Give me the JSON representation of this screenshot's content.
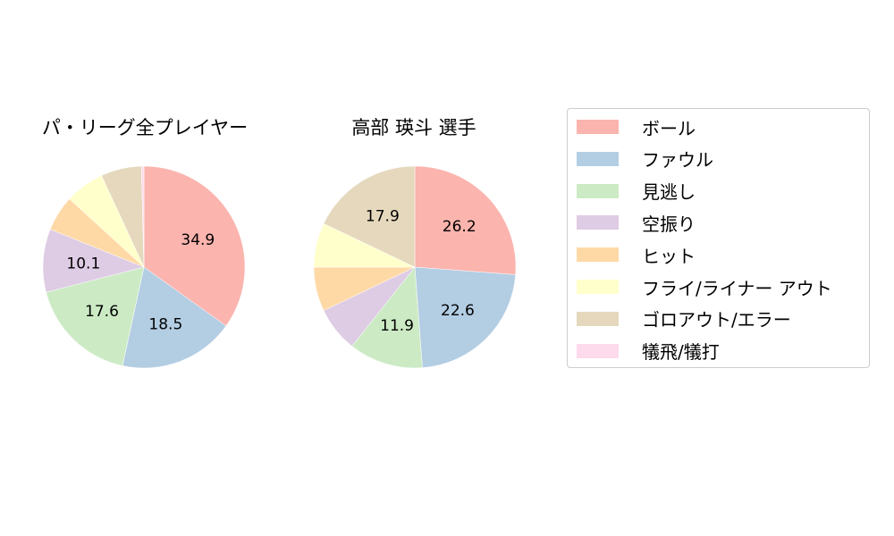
{
  "chart_data": [
    {
      "type": "pie",
      "title": "パ・リーグ全プレイヤー",
      "categories": [
        "ボール",
        "ファウル",
        "見逃し",
        "空振り",
        "ヒット",
        "フライ/ライナー アウト",
        "ゴロアウト/エラー",
        "犠飛/犠打"
      ],
      "values": [
        34.9,
        18.5,
        17.6,
        10.1,
        5.7,
        6.3,
        6.5,
        0.4
      ],
      "labels_shown": [
        "34.9",
        "18.5",
        "17.6",
        "10.1"
      ]
    },
    {
      "type": "pie",
      "title": "高部 瑛斗  選手",
      "categories": [
        "ボール",
        "ファウル",
        "見逃し",
        "空振り",
        "ヒット",
        "フライ/ライナー アウト",
        "ゴロアウト/エラー",
        "犠飛/犠打"
      ],
      "values": [
        26.2,
        22.6,
        11.9,
        7.2,
        7.1,
        7.1,
        17.9,
        0.0
      ],
      "labels_shown": [
        "26.2",
        "22.6",
        "11.9",
        "17.9"
      ]
    }
  ],
  "titles": {
    "left": "パ・リーグ全プレイヤー",
    "right": "高部 瑛斗  選手"
  },
  "legend": [
    {
      "label": "ボール",
      "color": "#fbb4ae"
    },
    {
      "label": "ファウル",
      "color": "#b3cde3"
    },
    {
      "label": "見逃し",
      "color": "#ccebc5"
    },
    {
      "label": "空振り",
      "color": "#decbe4"
    },
    {
      "label": "ヒット",
      "color": "#fed9a6"
    },
    {
      "label": "フライ/ライナー アウト",
      "color": "#ffffcc"
    },
    {
      "label": "ゴロアウト/エラー",
      "color": "#e5d8bd"
    },
    {
      "label": "犠飛/犠打",
      "color": "#fddaec"
    }
  ]
}
